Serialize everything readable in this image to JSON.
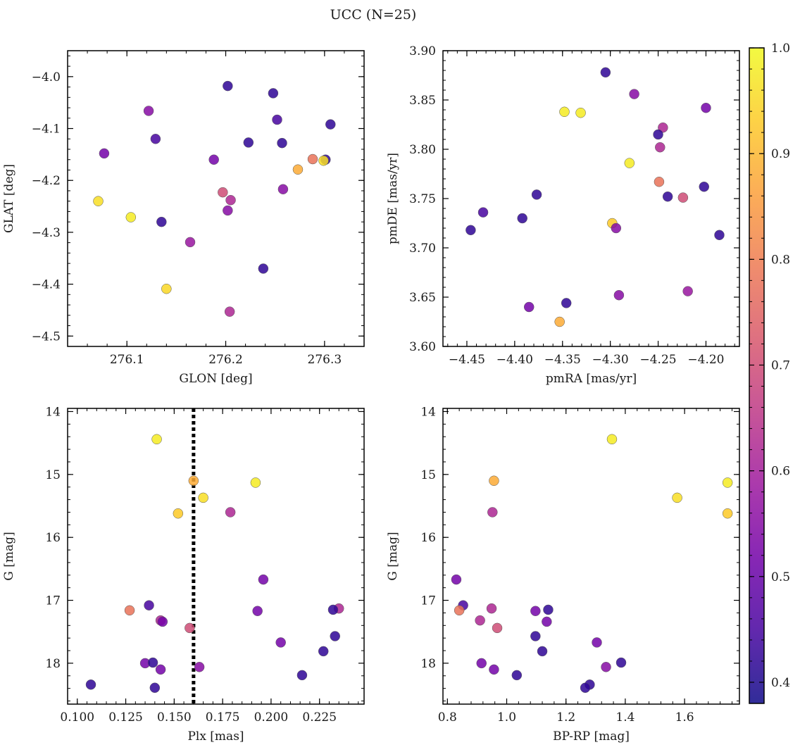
{
  "figure": {
    "title": "UCC (N=25)"
  },
  "colorbar": {
    "range": [
      0.38,
      1.0
    ],
    "ticks": [
      0.4,
      0.5,
      0.6,
      0.7,
      0.8,
      0.9,
      1.0
    ],
    "tick_labels": [
      "0.4",
      "0.5",
      "0.6",
      "0.7",
      "0.8",
      "0.9",
      "1.0"
    ],
    "colormap": "plasma"
  },
  "colormap_stops": [
    "#0d0887",
    "#46039f",
    "#7201a8",
    "#9c179e",
    "#bd3786",
    "#d8576b",
    "#ed7953",
    "#fb9f3a",
    "#fdca26",
    "#f0f921"
  ],
  "chart_data": [
    {
      "type": "scatter",
      "xlabel": "GLON [deg]",
      "ylabel": "GLAT [deg]",
      "xlim": [
        276.04,
        276.34
      ],
      "ylim": [
        -4.52,
        -3.95
      ],
      "invert_y": false,
      "xticks": [
        276.1,
        276.2,
        276.3
      ],
      "xtick_labels": [
        "276.1",
        "276.2",
        "276.3"
      ],
      "yticks": [
        -4.0,
        -4.1,
        -4.2,
        -4.3,
        -4.4,
        -4.5
      ],
      "ytick_labels": [
        "−4.0",
        "−4.1",
        "−4.2",
        "−4.3",
        "−4.4",
        "−4.5"
      ],
      "points": [
        {
          "x": 276.202,
          "y": -4.018,
          "c": 0.42
        },
        {
          "x": 276.248,
          "y": -4.032,
          "c": 0.42
        },
        {
          "x": 276.122,
          "y": -4.066,
          "c": 0.55
        },
        {
          "x": 276.252,
          "y": -4.083,
          "c": 0.45
        },
        {
          "x": 276.306,
          "y": -4.092,
          "c": 0.42
        },
        {
          "x": 276.129,
          "y": -4.12,
          "c": 0.45
        },
        {
          "x": 276.223,
          "y": -4.127,
          "c": 0.42
        },
        {
          "x": 276.257,
          "y": -4.128,
          "c": 0.42
        },
        {
          "x": 276.077,
          "y": -4.148,
          "c": 0.52
        },
        {
          "x": 276.188,
          "y": -4.16,
          "c": 0.52
        },
        {
          "x": 276.301,
          "y": -4.16,
          "c": 0.42
        },
        {
          "x": 276.288,
          "y": -4.159,
          "c": 0.78
        },
        {
          "x": 276.299,
          "y": -4.162,
          "c": 0.96
        },
        {
          "x": 276.273,
          "y": -4.179,
          "c": 0.88
        },
        {
          "x": 276.258,
          "y": -4.217,
          "c": 0.55
        },
        {
          "x": 276.197,
          "y": -4.223,
          "c": 0.7
        },
        {
          "x": 276.205,
          "y": -4.238,
          "c": 0.62
        },
        {
          "x": 276.071,
          "y": -4.24,
          "c": 0.96
        },
        {
          "x": 276.202,
          "y": -4.258,
          "c": 0.55
        },
        {
          "x": 276.104,
          "y": -4.271,
          "c": 0.98
        },
        {
          "x": 276.135,
          "y": -4.28,
          "c": 0.42
        },
        {
          "x": 276.164,
          "y": -4.319,
          "c": 0.58
        },
        {
          "x": 276.238,
          "y": -4.37,
          "c": 0.42
        },
        {
          "x": 276.14,
          "y": -4.409,
          "c": 0.95
        },
        {
          "x": 276.204,
          "y": -4.453,
          "c": 0.62
        }
      ]
    },
    {
      "type": "scatter",
      "xlabel": "pmRA [mas/yr]",
      "ylabel": "pmDE [mas/yr]",
      "xlim": [
        -4.475,
        -4.165
      ],
      "ylim": [
        3.6,
        3.9
      ],
      "invert_y": false,
      "xticks": [
        -4.45,
        -4.4,
        -4.35,
        -4.3,
        -4.25,
        -4.2
      ],
      "xtick_labels": [
        "−4.45",
        "−4.40",
        "−4.35",
        "−4.30",
        "−4.25",
        "−4.20"
      ],
      "yticks": [
        3.6,
        3.65,
        3.7,
        3.75,
        3.8,
        3.85,
        3.9
      ],
      "ytick_labels": [
        "3.60",
        "3.65",
        "3.70",
        "3.75",
        "3.80",
        "3.85",
        "3.90"
      ],
      "points": [
        {
          "x": -4.305,
          "y": 3.878,
          "c": 0.42
        },
        {
          "x": -4.275,
          "y": 3.856,
          "c": 0.55
        },
        {
          "x": -4.2,
          "y": 3.842,
          "c": 0.52
        },
        {
          "x": -4.348,
          "y": 3.838,
          "c": 0.98
        },
        {
          "x": -4.331,
          "y": 3.837,
          "c": 0.98
        },
        {
          "x": -4.245,
          "y": 3.822,
          "c": 0.62
        },
        {
          "x": -4.25,
          "y": 3.815,
          "c": 0.42
        },
        {
          "x": -4.248,
          "y": 3.802,
          "c": 0.62
        },
        {
          "x": -4.28,
          "y": 3.786,
          "c": 0.98
        },
        {
          "x": -4.249,
          "y": 3.767,
          "c": 0.78
        },
        {
          "x": -4.202,
          "y": 3.762,
          "c": 0.42
        },
        {
          "x": -4.377,
          "y": 3.754,
          "c": 0.42
        },
        {
          "x": -4.24,
          "y": 3.752,
          "c": 0.42
        },
        {
          "x": -4.224,
          "y": 3.751,
          "c": 0.7
        },
        {
          "x": -4.433,
          "y": 3.736,
          "c": 0.45
        },
        {
          "x": -4.392,
          "y": 3.73,
          "c": 0.42
        },
        {
          "x": -4.298,
          "y": 3.725,
          "c": 0.93
        },
        {
          "x": -4.294,
          "y": 3.72,
          "c": 0.55
        },
        {
          "x": -4.446,
          "y": 3.718,
          "c": 0.42
        },
        {
          "x": -4.186,
          "y": 3.713,
          "c": 0.42
        },
        {
          "x": -4.219,
          "y": 3.656,
          "c": 0.58
        },
        {
          "x": -4.291,
          "y": 3.652,
          "c": 0.55
        },
        {
          "x": -4.346,
          "y": 3.644,
          "c": 0.42
        },
        {
          "x": -4.385,
          "y": 3.64,
          "c": 0.52
        },
        {
          "x": -4.353,
          "y": 3.625,
          "c": 0.88
        }
      ]
    },
    {
      "type": "scatter",
      "xlabel": "Plx [mas]",
      "ylabel": "G [mag]",
      "xlim": [
        0.095,
        0.248
      ],
      "ylim": [
        13.95,
        18.65
      ],
      "invert_y": true,
      "vline": {
        "x": 0.16,
        "style": "dotted",
        "color": "#000000"
      },
      "xticks": [
        0.1,
        0.125,
        0.15,
        0.175,
        0.2,
        0.225
      ],
      "xtick_labels": [
        "0.100",
        "0.125",
        "0.150",
        "0.175",
        "0.200",
        "0.225"
      ],
      "yticks": [
        14,
        15,
        16,
        17,
        18
      ],
      "ytick_labels": [
        "14",
        "15",
        "16",
        "17",
        "18"
      ],
      "points": [
        {
          "x": 0.141,
          "y": 14.44,
          "c": 0.98
        },
        {
          "x": 0.16,
          "y": 15.1,
          "c": 0.88
        },
        {
          "x": 0.192,
          "y": 15.13,
          "c": 0.98
        },
        {
          "x": 0.165,
          "y": 15.37,
          "c": 0.96
        },
        {
          "x": 0.179,
          "y": 15.6,
          "c": 0.62
        },
        {
          "x": 0.152,
          "y": 15.62,
          "c": 0.93
        },
        {
          "x": 0.196,
          "y": 16.67,
          "c": 0.52
        },
        {
          "x": 0.137,
          "y": 17.08,
          "c": 0.45
        },
        {
          "x": 0.235,
          "y": 17.13,
          "c": 0.62
        },
        {
          "x": 0.127,
          "y": 17.16,
          "c": 0.78
        },
        {
          "x": 0.193,
          "y": 17.17,
          "c": 0.52
        },
        {
          "x": 0.232,
          "y": 17.15,
          "c": 0.42
        },
        {
          "x": 0.143,
          "y": 17.32,
          "c": 0.62
        },
        {
          "x": 0.144,
          "y": 17.34,
          "c": 0.52
        },
        {
          "x": 0.158,
          "y": 17.44,
          "c": 0.7
        },
        {
          "x": 0.233,
          "y": 17.57,
          "c": 0.42
        },
        {
          "x": 0.205,
          "y": 17.67,
          "c": 0.52
        },
        {
          "x": 0.227,
          "y": 17.81,
          "c": 0.42
        },
        {
          "x": 0.135,
          "y": 18.0,
          "c": 0.52
        },
        {
          "x": 0.139,
          "y": 17.99,
          "c": 0.42
        },
        {
          "x": 0.163,
          "y": 18.06,
          "c": 0.55
        },
        {
          "x": 0.143,
          "y": 18.1,
          "c": 0.52
        },
        {
          "x": 0.216,
          "y": 18.19,
          "c": 0.42
        },
        {
          "x": 0.107,
          "y": 18.34,
          "c": 0.42
        },
        {
          "x": 0.14,
          "y": 18.39,
          "c": 0.42
        }
      ]
    },
    {
      "type": "scatter",
      "xlabel": "BP-RP [mag]",
      "ylabel": "G [mag]",
      "xlim": [
        0.785,
        1.785
      ],
      "ylim": [
        13.95,
        18.65
      ],
      "invert_y": true,
      "xticks": [
        0.8,
        1.0,
        1.2,
        1.4,
        1.6
      ],
      "xtick_labels": [
        "0.8",
        "1.0",
        "1.2",
        "1.4",
        "1.6"
      ],
      "yticks": [
        14,
        15,
        16,
        17,
        18
      ],
      "ytick_labels": [
        "14",
        "15",
        "16",
        "17",
        "18"
      ],
      "points": [
        {
          "x": 1.355,
          "y": 14.44,
          "c": 0.98
        },
        {
          "x": 0.957,
          "y": 15.1,
          "c": 0.88
        },
        {
          "x": 1.745,
          "y": 15.13,
          "c": 0.98
        },
        {
          "x": 1.575,
          "y": 15.37,
          "c": 0.96
        },
        {
          "x": 0.952,
          "y": 15.6,
          "c": 0.62
        },
        {
          "x": 1.745,
          "y": 15.62,
          "c": 0.93
        },
        {
          "x": 0.83,
          "y": 16.67,
          "c": 0.52
        },
        {
          "x": 0.853,
          "y": 17.08,
          "c": 0.45
        },
        {
          "x": 0.949,
          "y": 17.13,
          "c": 0.62
        },
        {
          "x": 0.84,
          "y": 17.16,
          "c": 0.78
        },
        {
          "x": 1.097,
          "y": 17.17,
          "c": 0.52
        },
        {
          "x": 1.14,
          "y": 17.15,
          "c": 0.42
        },
        {
          "x": 0.91,
          "y": 17.32,
          "c": 0.62
        },
        {
          "x": 1.135,
          "y": 17.34,
          "c": 0.52
        },
        {
          "x": 0.968,
          "y": 17.44,
          "c": 0.7
        },
        {
          "x": 1.097,
          "y": 17.57,
          "c": 0.42
        },
        {
          "x": 1.304,
          "y": 17.67,
          "c": 0.52
        },
        {
          "x": 1.12,
          "y": 17.81,
          "c": 0.42
        },
        {
          "x": 0.915,
          "y": 18.0,
          "c": 0.52
        },
        {
          "x": 1.386,
          "y": 17.99,
          "c": 0.42
        },
        {
          "x": 1.335,
          "y": 18.06,
          "c": 0.55
        },
        {
          "x": 0.957,
          "y": 18.1,
          "c": 0.52
        },
        {
          "x": 1.034,
          "y": 18.19,
          "c": 0.42
        },
        {
          "x": 1.28,
          "y": 18.34,
          "c": 0.42
        },
        {
          "x": 1.265,
          "y": 18.39,
          "c": 0.42
        }
      ]
    }
  ]
}
